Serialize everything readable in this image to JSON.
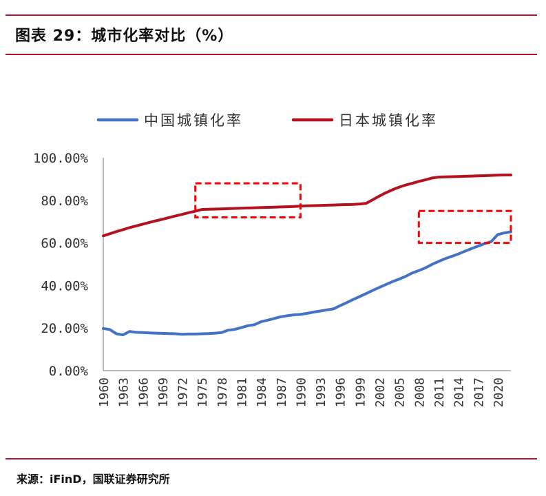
{
  "header": {
    "title": "图表 29：城市化率对比（%）"
  },
  "footer": {
    "source": "来源：iFinD，国联证券研究所"
  },
  "colors": {
    "rule": "#b5122f",
    "china": "#4472c4",
    "japan": "#b3121e",
    "highlight": "#ff0000"
  },
  "chart_data": {
    "type": "line",
    "x": [
      1960,
      1961,
      1962,
      1963,
      1964,
      1965,
      1966,
      1967,
      1968,
      1969,
      1970,
      1971,
      1972,
      1973,
      1974,
      1975,
      1976,
      1977,
      1978,
      1979,
      1980,
      1981,
      1982,
      1983,
      1984,
      1985,
      1986,
      1987,
      1988,
      1989,
      1990,
      1991,
      1992,
      1993,
      1994,
      1995,
      1996,
      1997,
      1998,
      1999,
      2000,
      2001,
      2002,
      2003,
      2004,
      2005,
      2006,
      2007,
      2008,
      2009,
      2010,
      2011,
      2012,
      2013,
      2014,
      2015,
      2016,
      2017,
      2018,
      2019,
      2020,
      2021,
      2022
    ],
    "x_tick_labels": [
      "1960",
      "1963",
      "1966",
      "1969",
      "1972",
      "1975",
      "1978",
      "1981",
      "1984",
      "1987",
      "1990",
      "1993",
      "1996",
      "1999",
      "2002",
      "2005",
      "2008",
      "2011",
      "2014",
      "2017",
      "2020"
    ],
    "y_tick_labels": [
      "0.00%",
      "20.00%",
      "40.00%",
      "60.00%",
      "80.00%",
      "100.00%"
    ],
    "ylim": [
      0,
      100
    ],
    "legend_position": "top",
    "grid": false,
    "series": [
      {
        "name": "中国城镇化率",
        "color": "#4472c4",
        "values": [
          19.8,
          19.3,
          17.3,
          16.8,
          18.4,
          18.0,
          17.9,
          17.7,
          17.6,
          17.5,
          17.4,
          17.3,
          17.1,
          17.2,
          17.2,
          17.3,
          17.4,
          17.6,
          17.9,
          19.0,
          19.4,
          20.2,
          21.1,
          21.6,
          23.0,
          23.7,
          24.5,
          25.3,
          25.8,
          26.2,
          26.4,
          26.9,
          27.5,
          28.0,
          28.5,
          29.0,
          30.5,
          31.9,
          33.4,
          34.8,
          36.2,
          37.7,
          39.1,
          40.5,
          41.8,
          43.0,
          44.3,
          45.9,
          47.0,
          48.3,
          49.9,
          51.3,
          52.6,
          53.7,
          54.8,
          56.1,
          57.3,
          58.5,
          59.6,
          60.6,
          63.9,
          64.7,
          65.2
        ]
      },
      {
        "name": "日本城镇化率",
        "color": "#b3121e",
        "values": [
          63.3,
          64.3,
          65.3,
          66.2,
          67.2,
          68.0,
          68.8,
          69.6,
          70.4,
          71.1,
          71.9,
          72.7,
          73.4,
          74.2,
          74.9,
          75.7,
          75.8,
          75.9,
          76.0,
          76.1,
          76.2,
          76.3,
          76.4,
          76.5,
          76.6,
          76.7,
          76.8,
          76.9,
          77.0,
          77.1,
          77.3,
          77.4,
          77.5,
          77.6,
          77.7,
          77.8,
          77.9,
          78.0,
          78.1,
          78.3,
          78.6,
          80.3,
          82.0,
          83.6,
          85.0,
          86.2,
          87.2,
          88.0,
          88.9,
          89.6,
          90.5,
          90.9,
          91.0,
          91.1,
          91.2,
          91.3,
          91.4,
          91.5,
          91.6,
          91.7,
          91.8,
          91.9,
          91.9
        ]
      }
    ],
    "highlight_boxes": [
      {
        "x_range": [
          1974,
          1990
        ],
        "y_range": [
          72,
          88
        ]
      },
      {
        "x_range": [
          2008,
          2022
        ],
        "y_range": [
          60,
          75
        ]
      }
    ]
  }
}
